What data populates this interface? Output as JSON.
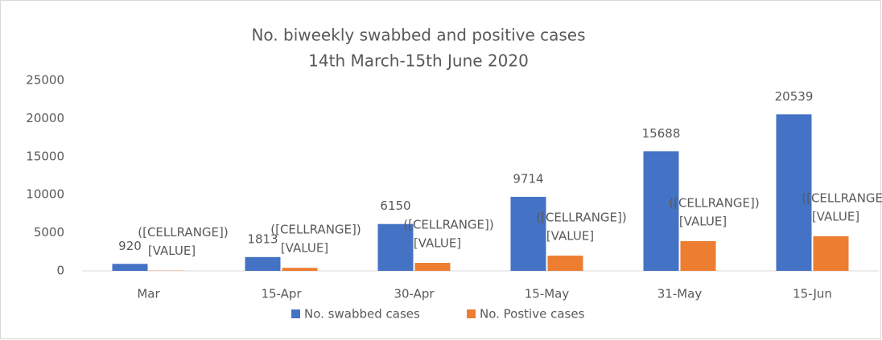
{
  "chart_data": {
    "type": "bar",
    "title": "No. biweekly swabbed and positive cases",
    "subtitle": "14th March-15th June 2020",
    "categories": [
      "Mar",
      "15-Apr",
      "30-Apr",
      "15-May",
      "31-May",
      "15-Jun"
    ],
    "series": [
      {
        "name": "No. swabbed cases",
        "color": "#4472c4",
        "values": [
          920,
          1813,
          6150,
          9714,
          15688,
          20539
        ]
      },
      {
        "name": "No. Postive cases",
        "color": "#ed7d31",
        "values": [
          30,
          400,
          1050,
          2000,
          3900,
          4550
        ],
        "value_labels": [
          [
            "([CELLRANGE])",
            "[VALUE]"
          ],
          [
            "([CELLRANGE])",
            "[VALUE]"
          ],
          [
            "([CELLRANGE])",
            "[VALUE]"
          ],
          [
            "([CELLRANGE])",
            "[VALUE]"
          ],
          [
            "([CELLRANGE])",
            "[VALUE]"
          ],
          [
            "([CELLRANGE])",
            "[VALUE]"
          ]
        ]
      }
    ],
    "ylim": [
      0,
      25000
    ],
    "yticks": [
      0,
      5000,
      10000,
      15000,
      20000,
      25000
    ],
    "grid": false,
    "legend": "bottom"
  }
}
